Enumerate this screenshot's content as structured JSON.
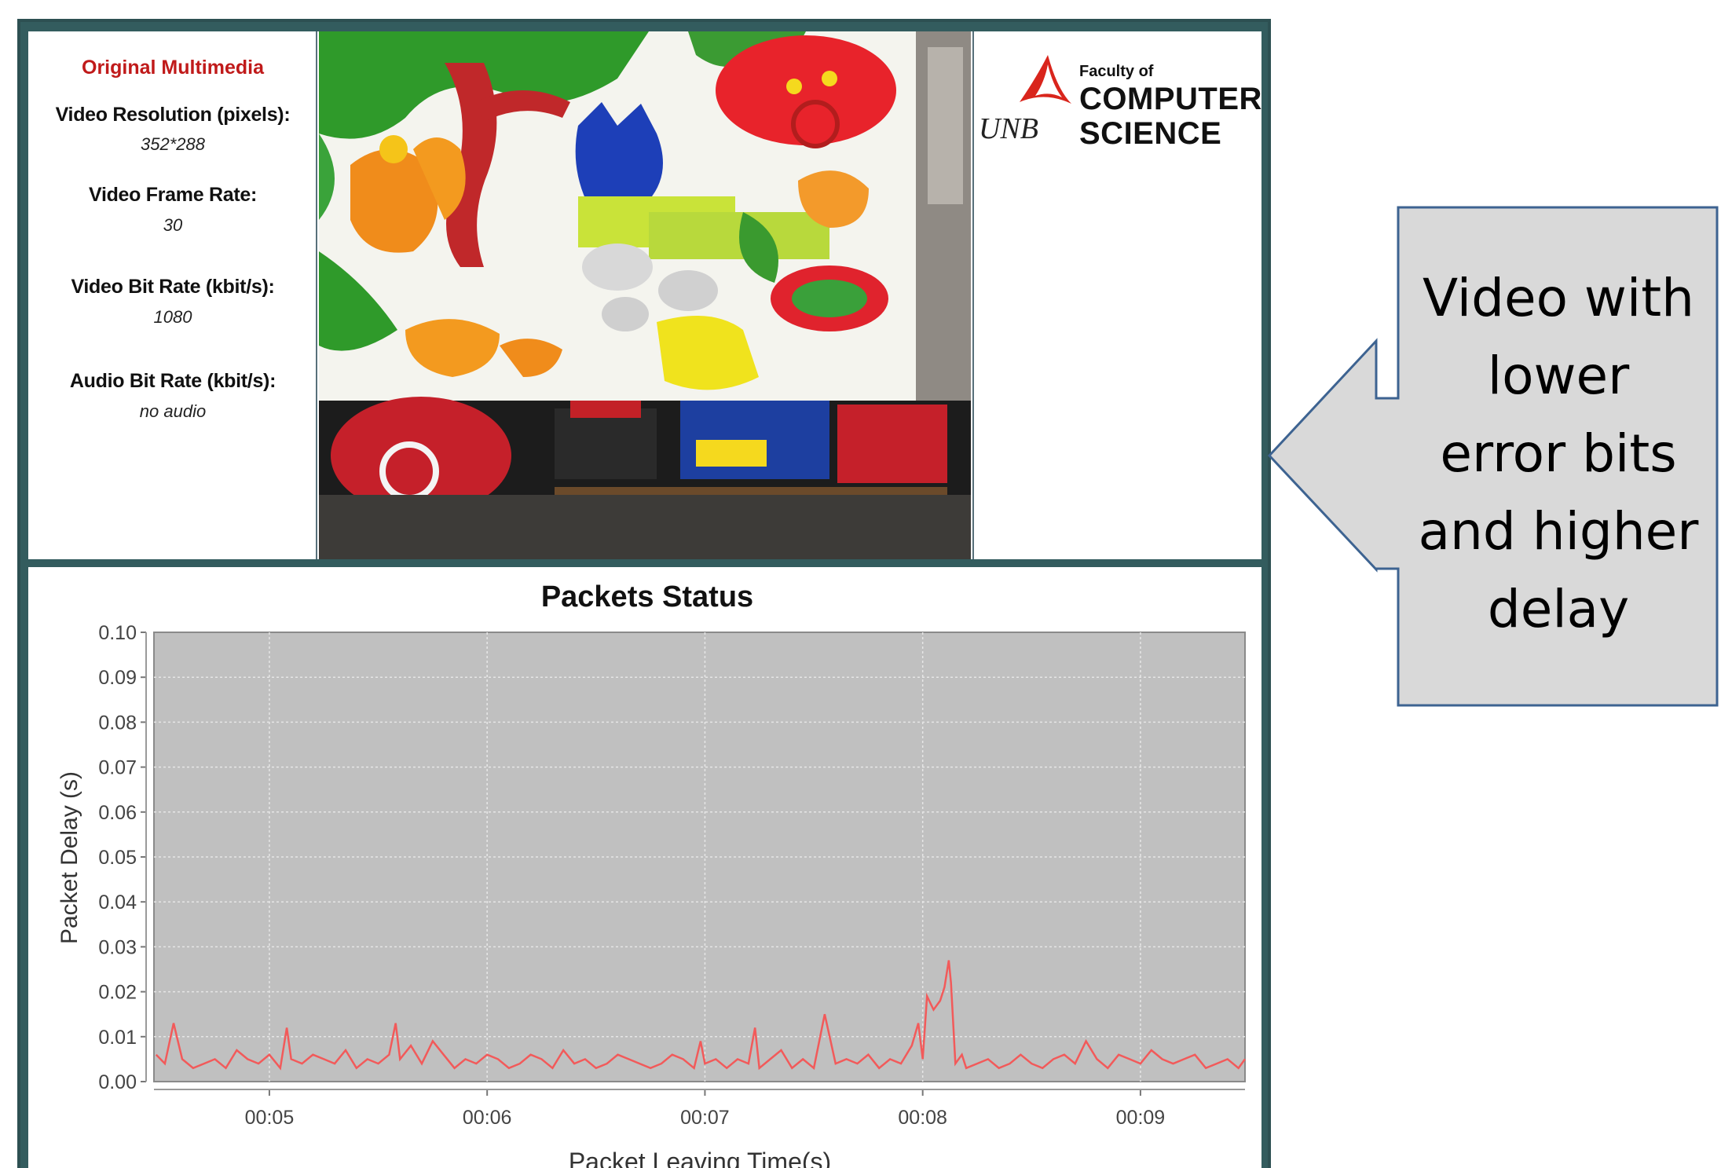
{
  "info_panel": {
    "heading": "Original Multimedia",
    "resolution_label": "Video Resolution (pixels):",
    "resolution_value": "352*288",
    "frame_rate_label": "Video Frame Rate:",
    "frame_rate_value": "30",
    "bit_rate_label": "Video Bit Rate (kbit/s):",
    "bit_rate_value": "1080",
    "audio_label": "Audio Bit Rate (kbit/s):",
    "audio_value": "no audio"
  },
  "logo": {
    "unb": "UNB",
    "faculty_of": "Faculty of",
    "line1": "COMPUTER",
    "line2": "SCIENCE",
    "sail_color": "#d9251c"
  },
  "callout": {
    "lines": [
      "Video with",
      "lower",
      "error bits",
      "and higher",
      "delay"
    ],
    "fill": "#d9d9d9",
    "border": "#3d6391"
  },
  "chart_data": {
    "type": "line",
    "title": "Packets Status",
    "xlabel": "Packet Leaving Time(s)",
    "ylabel": "Packet Delay (s)",
    "xlim": [
      "00:04.47",
      "00:09.48"
    ],
    "ylim": [
      0,
      0.1
    ],
    "xticks": [
      "00:05",
      "00:06",
      "00:07",
      "00:08",
      "00:09"
    ],
    "yticks": [
      "0.00",
      "0.01",
      "0.02",
      "0.03",
      "0.04",
      "0.05",
      "0.06",
      "0.07",
      "0.08",
      "0.09",
      "0.10"
    ],
    "grid": true,
    "plot_background": "#c0c0c0",
    "series": [
      {
        "color": "#f25a5a",
        "x": [
          4.48,
          4.52,
          4.56,
          4.6,
          4.65,
          4.7,
          4.75,
          4.8,
          4.85,
          4.9,
          4.95,
          5.0,
          5.05,
          5.08,
          5.1,
          5.15,
          5.2,
          5.25,
          5.3,
          5.35,
          5.4,
          5.45,
          5.5,
          5.55,
          5.58,
          5.6,
          5.65,
          5.7,
          5.75,
          5.8,
          5.85,
          5.9,
          5.95,
          6.0,
          6.05,
          6.1,
          6.15,
          6.2,
          6.25,
          6.3,
          6.35,
          6.4,
          6.45,
          6.5,
          6.55,
          6.6,
          6.65,
          6.7,
          6.75,
          6.8,
          6.85,
          6.9,
          6.95,
          6.98,
          7.0,
          7.05,
          7.1,
          7.15,
          7.2,
          7.23,
          7.25,
          7.3,
          7.35,
          7.4,
          7.45,
          7.5,
          7.55,
          7.6,
          7.65,
          7.7,
          7.75,
          7.8,
          7.85,
          7.9,
          7.95,
          7.98,
          8.0,
          8.02,
          8.05,
          8.08,
          8.1,
          8.12,
          8.13,
          8.15,
          8.18,
          8.2,
          8.25,
          8.3,
          8.35,
          8.4,
          8.45,
          8.5,
          8.55,
          8.6,
          8.65,
          8.7,
          8.75,
          8.8,
          8.85,
          8.9,
          8.95,
          9.0,
          9.05,
          9.1,
          9.15,
          9.2,
          9.25,
          9.3,
          9.35,
          9.4,
          9.45,
          9.48
        ],
        "y": [
          0.006,
          0.004,
          0.013,
          0.005,
          0.003,
          0.004,
          0.005,
          0.003,
          0.007,
          0.005,
          0.004,
          0.006,
          0.003,
          0.012,
          0.005,
          0.004,
          0.006,
          0.005,
          0.004,
          0.007,
          0.003,
          0.005,
          0.004,
          0.006,
          0.013,
          0.005,
          0.008,
          0.004,
          0.009,
          0.006,
          0.003,
          0.005,
          0.004,
          0.006,
          0.005,
          0.003,
          0.004,
          0.006,
          0.005,
          0.003,
          0.007,
          0.004,
          0.005,
          0.003,
          0.004,
          0.006,
          0.005,
          0.004,
          0.003,
          0.004,
          0.006,
          0.005,
          0.003,
          0.009,
          0.004,
          0.005,
          0.003,
          0.005,
          0.004,
          0.012,
          0.003,
          0.005,
          0.007,
          0.003,
          0.005,
          0.003,
          0.015,
          0.004,
          0.005,
          0.004,
          0.006,
          0.003,
          0.005,
          0.004,
          0.008,
          0.013,
          0.005,
          0.019,
          0.016,
          0.018,
          0.021,
          0.027,
          0.022,
          0.004,
          0.006,
          0.003,
          0.004,
          0.005,
          0.003,
          0.004,
          0.006,
          0.004,
          0.003,
          0.005,
          0.006,
          0.004,
          0.009,
          0.005,
          0.003,
          0.006,
          0.005,
          0.004,
          0.007,
          0.005,
          0.004,
          0.005,
          0.006,
          0.003,
          0.004,
          0.005,
          0.003,
          0.005
        ]
      }
    ]
  }
}
